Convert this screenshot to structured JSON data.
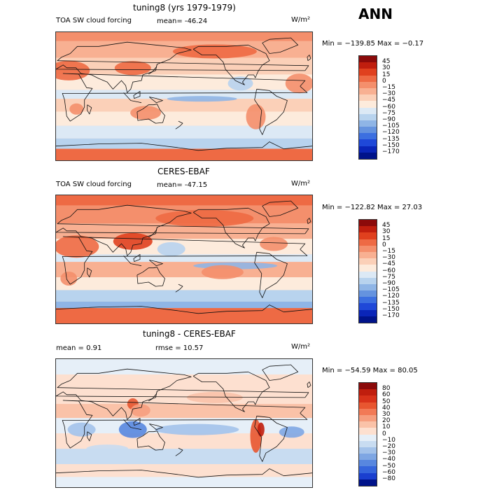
{
  "season": "ANN",
  "panels": [
    {
      "title": "tuning8 (yrs 1979-1979)",
      "variable": "TOA SW cloud forcing",
      "stat_left": "mean=  -46.24",
      "stat_right": "",
      "units": "W/m²",
      "range": "Min = −139.85  Max =   −0.17"
    },
    {
      "title": "CERES-EBAF",
      "variable": "TOA SW cloud forcing",
      "stat_left": "mean=  -47.15",
      "stat_right": "",
      "units": "W/m²",
      "range": "Min = −122.82  Max =   27.03"
    },
    {
      "title": "tuning8 - CERES-EBAF",
      "variable": "",
      "stat_left": "mean =    0.91",
      "stat_right": "rmse =   10.57",
      "units": "W/m²",
      "range": "Min = −54.59  Max =   80.05"
    }
  ],
  "colorbars": [
    {
      "labels": [
        "45",
        "30",
        "15",
        "0",
        "−15",
        "−30",
        "−45",
        "−60",
        "−75",
        "−90",
        "−105",
        "−120",
        "−135",
        "−150",
        "−170"
      ],
      "colors": [
        "#8b0a0a",
        "#c01e0e",
        "#e0401e",
        "#ee6a44",
        "#f48f6c",
        "#f8b092",
        "#fbd0b8",
        "#fdebdc",
        "#dce9f5",
        "#b8d3ee",
        "#8fb5e6",
        "#6593df",
        "#3c6fe0",
        "#1f48d8",
        "#0a25b8",
        "#00138a"
      ]
    },
    {
      "labels": [
        "45",
        "30",
        "15",
        "0",
        "−15",
        "−30",
        "−45",
        "−60",
        "−75",
        "−90",
        "−105",
        "−120",
        "−135",
        "−150",
        "−170"
      ],
      "colors": [
        "#8b0a0a",
        "#c01e0e",
        "#e0401e",
        "#ee6a44",
        "#f48f6c",
        "#f8b092",
        "#fbd0b8",
        "#fdebdc",
        "#dce9f5",
        "#b8d3ee",
        "#8fb5e6",
        "#6593df",
        "#3c6fe0",
        "#1f48d8",
        "#0a25b8",
        "#00138a"
      ]
    },
    {
      "labels": [
        "80",
        "60",
        "50",
        "40",
        "30",
        "20",
        "10",
        "0",
        "−10",
        "−20",
        "−30",
        "−40",
        "−50",
        "−60",
        "−80"
      ],
      "colors": [
        "#8b0a0a",
        "#c01e0e",
        "#d8321a",
        "#e85630",
        "#f27a56",
        "#f69e7e",
        "#fac2a8",
        "#fde0d0",
        "#e6eff8",
        "#c8dcf1",
        "#a3c2ea",
        "#7ea6e3",
        "#5887df",
        "#3565dc",
        "#1a3fcf",
        "#00138a"
      ]
    }
  ],
  "chart_data": [
    {
      "type": "heatmap",
      "title": "tuning8 (yrs 1979-1979)",
      "subtitle": "TOA SW cloud forcing",
      "mean": -46.24,
      "min": -139.85,
      "max": -0.17,
      "units": "W/m²",
      "levels": [
        45,
        30,
        15,
        0,
        -15,
        -30,
        -45,
        -60,
        -75,
        -90,
        -105,
        -120,
        -135,
        -150,
        -170
      ]
    },
    {
      "type": "heatmap",
      "title": "CERES-EBAF",
      "subtitle": "TOA SW cloud forcing",
      "mean": -47.15,
      "min": -122.82,
      "max": 27.03,
      "units": "W/m²",
      "levels": [
        45,
        30,
        15,
        0,
        -15,
        -30,
        -45,
        -60,
        -75,
        -90,
        -105,
        -120,
        -135,
        -150,
        -170
      ]
    },
    {
      "type": "heatmap",
      "title": "tuning8 - CERES-EBAF",
      "mean": 0.91,
      "rmse": 10.57,
      "min": -54.59,
      "max": 80.05,
      "units": "W/m²",
      "levels": [
        80,
        60,
        50,
        40,
        30,
        20,
        10,
        0,
        -10,
        -20,
        -30,
        -40,
        -50,
        -60,
        -80
      ]
    }
  ]
}
